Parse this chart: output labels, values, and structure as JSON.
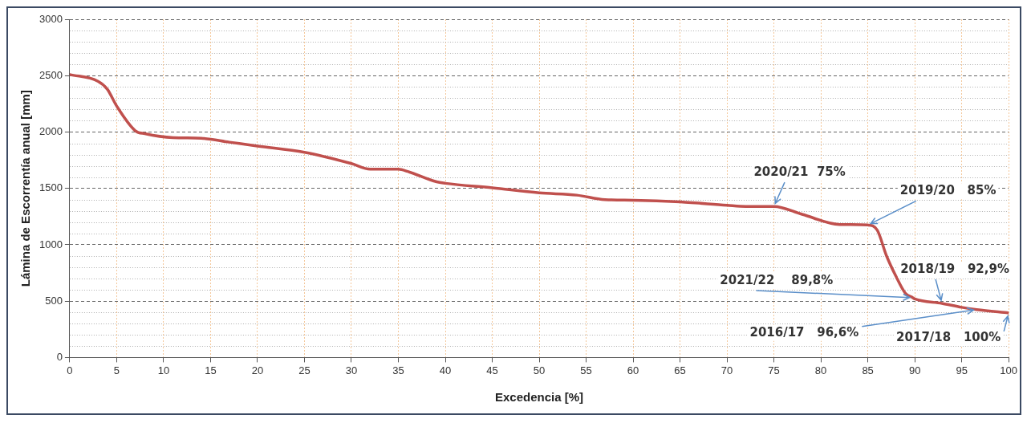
{
  "chart_data": {
    "type": "line",
    "xlabel": "Excedencia [%]",
    "ylabel": "Lámina de Escorrentía anual [mm]",
    "x": [
      0,
      3,
      4,
      5,
      7,
      8,
      11,
      14,
      17,
      20,
      25,
      30,
      32,
      35,
      36,
      39,
      40,
      45,
      50,
      54,
      57,
      60,
      65,
      70,
      72,
      75,
      78,
      82,
      85,
      86,
      87,
      88,
      89,
      89.8,
      90,
      92.9,
      95,
      96.6,
      100
    ],
    "series": [
      {
        "color": "#c0504d",
        "values": [
          2510,
          2450,
          2380,
          2230,
          2010,
          1985,
          1950,
          1945,
          1910,
          1875,
          1820,
          1720,
          1670,
          1670,
          1650,
          1560,
          1545,
          1505,
          1460,
          1440,
          1400,
          1395,
          1380,
          1350,
          1340,
          1340,
          1270,
          1180,
          1175,
          1130,
          900,
          720,
          570,
          530,
          520,
          480,
          445,
          425,
          395
        ]
      }
    ],
    "xlim": [
      0,
      100
    ],
    "xticks": [
      0,
      5,
      10,
      15,
      20,
      25,
      30,
      35,
      40,
      45,
      50,
      55,
      60,
      65,
      70,
      75,
      80,
      85,
      90,
      95,
      100
    ],
    "ylim": [
      0,
      3000
    ],
    "yticks": [
      0,
      500,
      1000,
      1500,
      2000,
      2500,
      3000
    ],
    "grid": true,
    "marker": "none",
    "line_style": "solid",
    "annotations": [
      {
        "text": "2020/21  75%",
        "x": 75,
        "y": 1340
      },
      {
        "text": "2019/20   85%",
        "x": 85,
        "y": 1175
      },
      {
        "text": "2018/19   92,9%",
        "x": 92.9,
        "y": 480
      },
      {
        "text": "2021/22    89,8%",
        "x": 89.8,
        "y": 530
      },
      {
        "text": "2016/17   96,6%",
        "x": 96.6,
        "y": 425
      },
      {
        "text": "2017/18   100%",
        "x": 100,
        "y": 395
      }
    ]
  }
}
